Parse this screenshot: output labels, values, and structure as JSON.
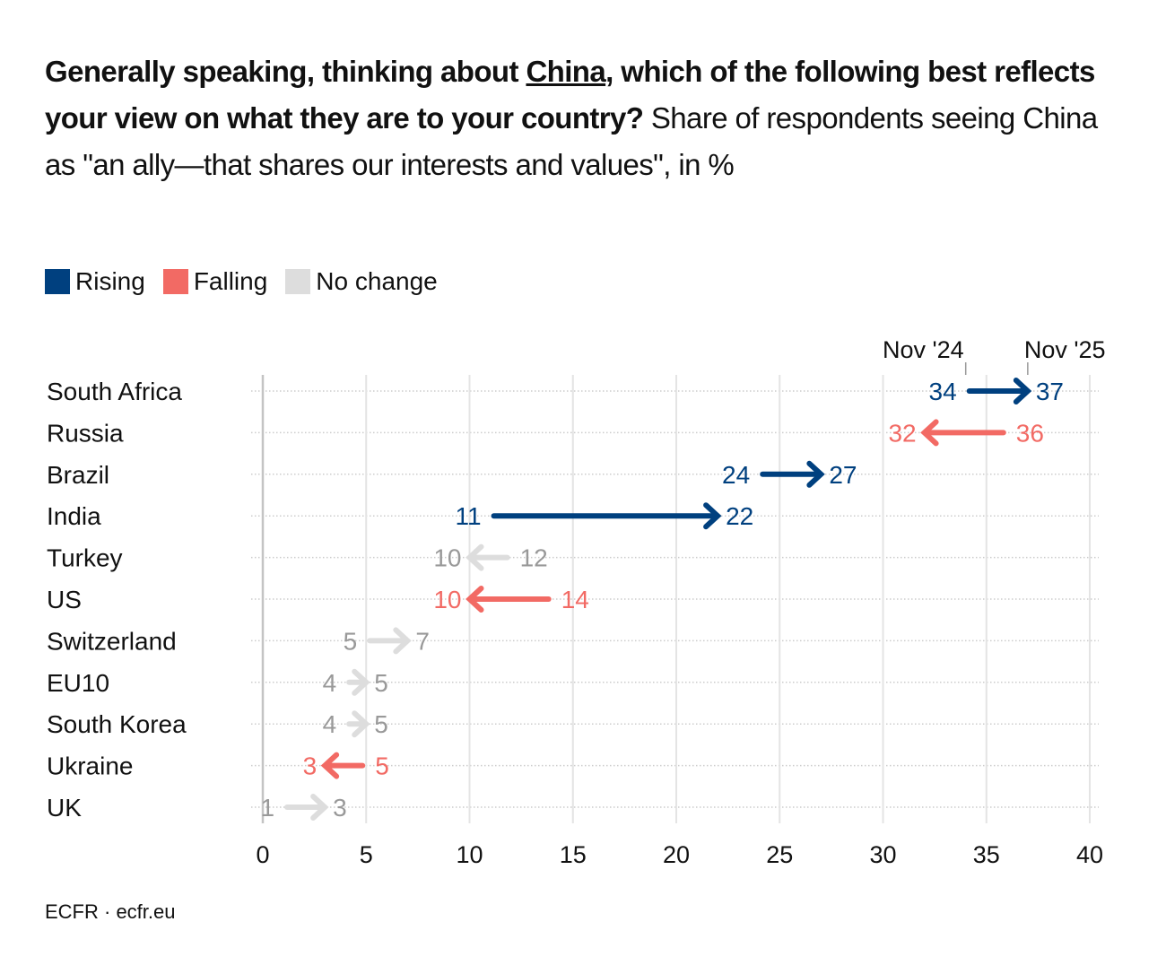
{
  "title": {
    "bold_1": "Generally speaking, thinking about ",
    "bold_underlined": "China",
    "bold_2": ", which of the following best reflects your view on what they are to your country?",
    "subtitle": " Share of respondents seeing China as \"an ally—that shares our interests and values\", in %"
  },
  "legend": [
    {
      "label": "Rising",
      "color": "#00407f"
    },
    {
      "label": "Falling",
      "color": "#f26a64"
    },
    {
      "label": "No change",
      "color": "#dddddd"
    }
  ],
  "footer": "ECFR · ecfr.eu",
  "chart_data": {
    "type": "arrow",
    "xlim": [
      0,
      40
    ],
    "xticks": [
      0,
      5,
      10,
      15,
      20,
      25,
      30,
      35,
      40
    ],
    "grid": true,
    "start_label": "Nov '24",
    "end_label": "Nov '25",
    "colors": {
      "rising": "#00407f",
      "falling": "#f26a64",
      "nochange_arrow": "#dddddd",
      "nochange_text": "#999999"
    },
    "rows": [
      {
        "country": "South Africa",
        "nov24": 34,
        "nov25": 37,
        "status": "rising"
      },
      {
        "country": "Russia",
        "nov24": 36,
        "nov25": 32,
        "status": "falling"
      },
      {
        "country": "Brazil",
        "nov24": 24,
        "nov25": 27,
        "status": "rising"
      },
      {
        "country": "India",
        "nov24": 11,
        "nov25": 22,
        "status": "rising"
      },
      {
        "country": "Turkey",
        "nov24": 12,
        "nov25": 10,
        "status": "nochange"
      },
      {
        "country": "US",
        "nov24": 14,
        "nov25": 10,
        "status": "falling"
      },
      {
        "country": "Switzerland",
        "nov24": 5,
        "nov25": 7,
        "status": "nochange"
      },
      {
        "country": "EU10",
        "nov24": 4,
        "nov25": 5,
        "status": "nochange"
      },
      {
        "country": "South Korea",
        "nov24": 4,
        "nov25": 5,
        "status": "nochange"
      },
      {
        "country": "Ukraine",
        "nov24": 5,
        "nov25": 3,
        "status": "falling"
      },
      {
        "country": "UK",
        "nov24": 1,
        "nov25": 3,
        "status": "nochange"
      }
    ]
  }
}
